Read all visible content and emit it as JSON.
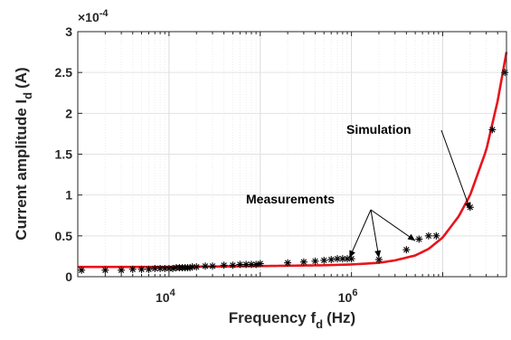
{
  "chart_data": {
    "type": "line",
    "xlabel_main": "Frequency f",
    "xlabel_sub": "d",
    "xlabel_unit": "(Hz)",
    "ylabel_main": "Current amplitude I",
    "ylabel_sub": "d",
    "ylabel_unit": "(A)",
    "y_multiplier_prefix": "×10",
    "y_multiplier_exp": "-4",
    "x_scale": "log",
    "xlim": [
      1000,
      50000000
    ],
    "ylim": [
      0,
      3
    ],
    "x_ticks": [
      {
        "value": 10000,
        "base": "10",
        "exp": "4"
      },
      {
        "value": 1000000,
        "base": "10",
        "exp": "6"
      }
    ],
    "y_ticks": [
      {
        "value": 0,
        "label": "0"
      },
      {
        "value": 0.5,
        "label": "0.5"
      },
      {
        "value": 1,
        "label": "1"
      },
      {
        "value": 1.5,
        "label": "1.5"
      },
      {
        "value": 2,
        "label": "2"
      },
      {
        "value": 2.5,
        "label": "2.5"
      },
      {
        "value": 3,
        "label": "3"
      }
    ],
    "grid": true,
    "series": [
      {
        "name": "Simulation",
        "style": "line",
        "color": "#e8141c",
        "x": [
          1000,
          10000,
          100000,
          500000,
          1000000,
          2000000,
          3000000,
          5000000,
          7000000,
          10000000,
          15000000,
          20000000,
          30000000,
          40000000,
          50000000
        ],
        "y": [
          0.12,
          0.12,
          0.13,
          0.14,
          0.15,
          0.17,
          0.2,
          0.26,
          0.34,
          0.48,
          0.74,
          1.0,
          1.55,
          2.15,
          2.75
        ]
      },
      {
        "name": "Measurements",
        "style": "markers",
        "marker": "*",
        "color": "#000000",
        "x": [
          1100,
          2000,
          3000,
          4000,
          5000,
          6000,
          7000,
          8000,
          9000,
          10000,
          11000,
          12000,
          13000,
          14000,
          15000,
          16000,
          17000,
          18000,
          20000,
          25000,
          30000,
          40000,
          50000,
          60000,
          70000,
          80000,
          90000,
          100000,
          200000,
          300000,
          400000,
          500000,
          600000,
          700000,
          800000,
          900000,
          1000000,
          2000000,
          4000000,
          5500000,
          7000000,
          8500000,
          20000000,
          35000000,
          48000000
        ],
        "y": [
          0.08,
          0.08,
          0.08,
          0.09,
          0.09,
          0.09,
          0.1,
          0.1,
          0.1,
          0.1,
          0.1,
          0.11,
          0.11,
          0.11,
          0.11,
          0.11,
          0.11,
          0.12,
          0.12,
          0.13,
          0.13,
          0.14,
          0.14,
          0.15,
          0.15,
          0.15,
          0.15,
          0.16,
          0.17,
          0.18,
          0.19,
          0.2,
          0.21,
          0.22,
          0.22,
          0.22,
          0.22,
          0.21,
          0.33,
          0.46,
          0.5,
          0.5,
          0.85,
          1.8,
          2.5
        ]
      }
    ],
    "annotations": [
      {
        "text": "Simulation",
        "arrow_to": [
          20000000,
          0.82
        ]
      },
      {
        "text": "Measurements",
        "arrows_to": [
          [
            950000,
            0.23
          ],
          [
            2000000,
            0.23
          ],
          [
            5000000,
            0.44
          ]
        ]
      }
    ]
  }
}
